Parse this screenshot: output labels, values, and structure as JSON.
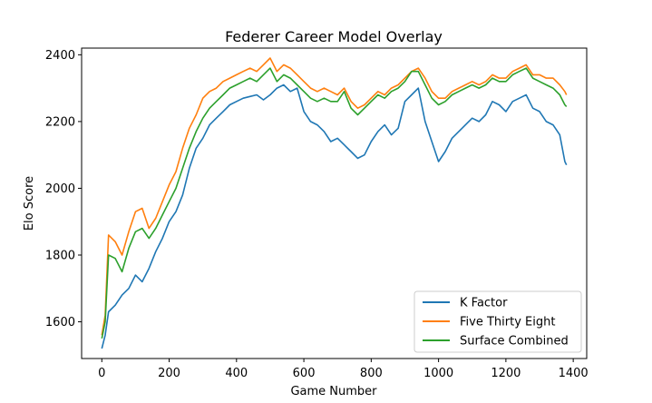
{
  "chart_data": {
    "type": "line",
    "title": "Federer Career Model Overlay",
    "xlabel": "Game Number",
    "ylabel": "Elo Score",
    "xlim": [
      -60,
      1440
    ],
    "ylim": [
      1490,
      2420
    ],
    "xticks": [
      0,
      200,
      400,
      600,
      800,
      1000,
      1200,
      1400
    ],
    "yticks": [
      1600,
      1800,
      2000,
      2200,
      2400
    ],
    "grid": false,
    "legend": "lower-right",
    "series": [
      {
        "name": "K Factor",
        "color": "#1f77b4",
        "points": [
          [
            0,
            1520
          ],
          [
            10,
            1560
          ],
          [
            20,
            1630
          ],
          [
            40,
            1650
          ],
          [
            60,
            1680
          ],
          [
            80,
            1700
          ],
          [
            100,
            1740
          ],
          [
            120,
            1720
          ],
          [
            140,
            1760
          ],
          [
            160,
            1810
          ],
          [
            180,
            1850
          ],
          [
            200,
            1900
          ],
          [
            220,
            1930
          ],
          [
            240,
            1980
          ],
          [
            260,
            2060
          ],
          [
            280,
            2120
          ],
          [
            300,
            2150
          ],
          [
            320,
            2190
          ],
          [
            340,
            2210
          ],
          [
            360,
            2230
          ],
          [
            380,
            2250
          ],
          [
            400,
            2260
          ],
          [
            420,
            2270
          ],
          [
            440,
            2275
          ],
          [
            460,
            2280
          ],
          [
            480,
            2265
          ],
          [
            500,
            2280
          ],
          [
            520,
            2300
          ],
          [
            540,
            2310
          ],
          [
            560,
            2290
          ],
          [
            580,
            2300
          ],
          [
            600,
            2230
          ],
          [
            620,
            2200
          ],
          [
            640,
            2190
          ],
          [
            660,
            2170
          ],
          [
            680,
            2140
          ],
          [
            700,
            2150
          ],
          [
            720,
            2130
          ],
          [
            740,
            2110
          ],
          [
            760,
            2090
          ],
          [
            780,
            2100
          ],
          [
            800,
            2140
          ],
          [
            820,
            2170
          ],
          [
            840,
            2190
          ],
          [
            860,
            2160
          ],
          [
            880,
            2180
          ],
          [
            900,
            2260
          ],
          [
            920,
            2280
          ],
          [
            940,
            2300
          ],
          [
            960,
            2200
          ],
          [
            980,
            2140
          ],
          [
            1000,
            2080
          ],
          [
            1020,
            2110
          ],
          [
            1040,
            2150
          ],
          [
            1060,
            2170
          ],
          [
            1080,
            2190
          ],
          [
            1100,
            2210
          ],
          [
            1120,
            2200
          ],
          [
            1140,
            2220
          ],
          [
            1160,
            2260
          ],
          [
            1180,
            2250
          ],
          [
            1200,
            2230
          ],
          [
            1220,
            2260
          ],
          [
            1240,
            2270
          ],
          [
            1260,
            2280
          ],
          [
            1280,
            2240
          ],
          [
            1300,
            2230
          ],
          [
            1320,
            2200
          ],
          [
            1340,
            2190
          ],
          [
            1360,
            2160
          ],
          [
            1375,
            2080
          ],
          [
            1380,
            2070
          ]
        ]
      },
      {
        "name": "Five Thirty Eight",
        "color": "#ff7f0e",
        "points": [
          [
            0,
            1560
          ],
          [
            10,
            1620
          ],
          [
            20,
            1860
          ],
          [
            40,
            1840
          ],
          [
            60,
            1800
          ],
          [
            80,
            1870
          ],
          [
            100,
            1930
          ],
          [
            120,
            1940
          ],
          [
            140,
            1880
          ],
          [
            160,
            1910
          ],
          [
            180,
            1960
          ],
          [
            200,
            2010
          ],
          [
            220,
            2050
          ],
          [
            240,
            2120
          ],
          [
            260,
            2180
          ],
          [
            280,
            2220
          ],
          [
            300,
            2270
          ],
          [
            320,
            2290
          ],
          [
            340,
            2300
          ],
          [
            360,
            2320
          ],
          [
            380,
            2330
          ],
          [
            400,
            2340
          ],
          [
            420,
            2350
          ],
          [
            440,
            2360
          ],
          [
            460,
            2350
          ],
          [
            480,
            2370
          ],
          [
            500,
            2390
          ],
          [
            520,
            2350
          ],
          [
            540,
            2370
          ],
          [
            560,
            2360
          ],
          [
            580,
            2340
          ],
          [
            600,
            2320
          ],
          [
            620,
            2300
          ],
          [
            640,
            2290
          ],
          [
            660,
            2300
          ],
          [
            680,
            2290
          ],
          [
            700,
            2280
          ],
          [
            720,
            2300
          ],
          [
            740,
            2260
          ],
          [
            760,
            2240
          ],
          [
            780,
            2250
          ],
          [
            800,
            2270
          ],
          [
            820,
            2290
          ],
          [
            840,
            2280
          ],
          [
            860,
            2300
          ],
          [
            880,
            2310
          ],
          [
            900,
            2330
          ],
          [
            920,
            2350
          ],
          [
            940,
            2360
          ],
          [
            960,
            2330
          ],
          [
            980,
            2290
          ],
          [
            1000,
            2270
          ],
          [
            1020,
            2270
          ],
          [
            1040,
            2290
          ],
          [
            1060,
            2300
          ],
          [
            1080,
            2310
          ],
          [
            1100,
            2320
          ],
          [
            1120,
            2310
          ],
          [
            1140,
            2320
          ],
          [
            1160,
            2340
          ],
          [
            1180,
            2330
          ],
          [
            1200,
            2330
          ],
          [
            1220,
            2350
          ],
          [
            1240,
            2360
          ],
          [
            1260,
            2370
          ],
          [
            1280,
            2340
          ],
          [
            1300,
            2340
          ],
          [
            1320,
            2330
          ],
          [
            1340,
            2330
          ],
          [
            1360,
            2310
          ],
          [
            1375,
            2290
          ],
          [
            1380,
            2280
          ]
        ]
      },
      {
        "name": "Surface Combined",
        "color": "#2ca02c",
        "points": [
          [
            0,
            1550
          ],
          [
            10,
            1600
          ],
          [
            20,
            1800
          ],
          [
            40,
            1790
          ],
          [
            60,
            1750
          ],
          [
            80,
            1820
          ],
          [
            100,
            1870
          ],
          [
            120,
            1880
          ],
          [
            140,
            1850
          ],
          [
            160,
            1880
          ],
          [
            180,
            1920
          ],
          [
            200,
            1960
          ],
          [
            220,
            2000
          ],
          [
            240,
            2060
          ],
          [
            260,
            2120
          ],
          [
            280,
            2170
          ],
          [
            300,
            2210
          ],
          [
            320,
            2240
          ],
          [
            340,
            2260
          ],
          [
            360,
            2280
          ],
          [
            380,
            2300
          ],
          [
            400,
            2310
          ],
          [
            420,
            2320
          ],
          [
            440,
            2330
          ],
          [
            460,
            2320
          ],
          [
            480,
            2340
          ],
          [
            500,
            2360
          ],
          [
            520,
            2320
          ],
          [
            540,
            2340
          ],
          [
            560,
            2330
          ],
          [
            580,
            2310
          ],
          [
            600,
            2290
          ],
          [
            620,
            2270
          ],
          [
            640,
            2260
          ],
          [
            660,
            2270
          ],
          [
            680,
            2260
          ],
          [
            700,
            2260
          ],
          [
            720,
            2290
          ],
          [
            740,
            2240
          ],
          [
            760,
            2220
          ],
          [
            780,
            2240
          ],
          [
            800,
            2260
          ],
          [
            820,
            2280
          ],
          [
            840,
            2270
          ],
          [
            860,
            2290
          ],
          [
            880,
            2300
          ],
          [
            900,
            2320
          ],
          [
            920,
            2350
          ],
          [
            940,
            2350
          ],
          [
            960,
            2310
          ],
          [
            980,
            2270
          ],
          [
            1000,
            2250
          ],
          [
            1020,
            2260
          ],
          [
            1040,
            2280
          ],
          [
            1060,
            2290
          ],
          [
            1080,
            2300
          ],
          [
            1100,
            2310
          ],
          [
            1120,
            2300
          ],
          [
            1140,
            2310
          ],
          [
            1160,
            2330
          ],
          [
            1180,
            2320
          ],
          [
            1200,
            2320
          ],
          [
            1220,
            2340
          ],
          [
            1240,
            2350
          ],
          [
            1260,
            2360
          ],
          [
            1280,
            2330
          ],
          [
            1300,
            2320
          ],
          [
            1320,
            2310
          ],
          [
            1340,
            2300
          ],
          [
            1360,
            2280
          ],
          [
            1375,
            2250
          ],
          [
            1380,
            2245
          ]
        ]
      }
    ]
  }
}
